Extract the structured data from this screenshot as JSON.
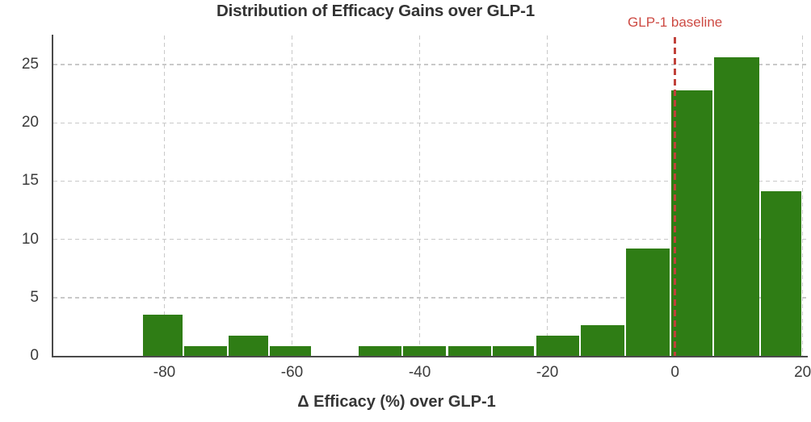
{
  "chart_data": {
    "type": "bar",
    "subtype": "histogram",
    "title": "Distribution of Efficacy Gains over GLP-1",
    "xlabel": "Δ Efficacy (%) over GLP-1",
    "ylabel": "",
    "bin_edges": [
      -83.5,
      -77.0,
      -70.1,
      -63.6,
      -56.9,
      -49.7,
      -42.7,
      -35.7,
      -28.7,
      -21.9,
      -14.9,
      -7.8,
      -0.7,
      6.0,
      13.3,
      19.9
    ],
    "values": [
      3.5,
      0.8,
      1.7,
      0.8,
      0,
      0.8,
      0.8,
      0.8,
      0.8,
      1.7,
      2.6,
      9.2,
      22.8,
      25.6,
      14.1
    ],
    "xticks": [
      -80,
      -60,
      -40,
      -20,
      0,
      20
    ],
    "yticks": [
      0,
      5,
      10,
      15,
      20,
      25
    ],
    "xlim": [
      -97.4,
      20.8
    ],
    "ylim": [
      0,
      27.5
    ],
    "grid": true,
    "grid_style": "dashed",
    "legend": "none",
    "annotation": {
      "label": "GLP-1 baseline",
      "x": 0,
      "line_style": "dashed"
    },
    "colors": {
      "bar": "#2F7D15",
      "vline": "#C0413A",
      "annotation_text": "#CD4A43",
      "grid": "#C9C9C9",
      "axis": "#4A4A4A",
      "title_text": "#333333",
      "tick_text": "#3B3B3B",
      "background": "#FFFFFF"
    }
  }
}
